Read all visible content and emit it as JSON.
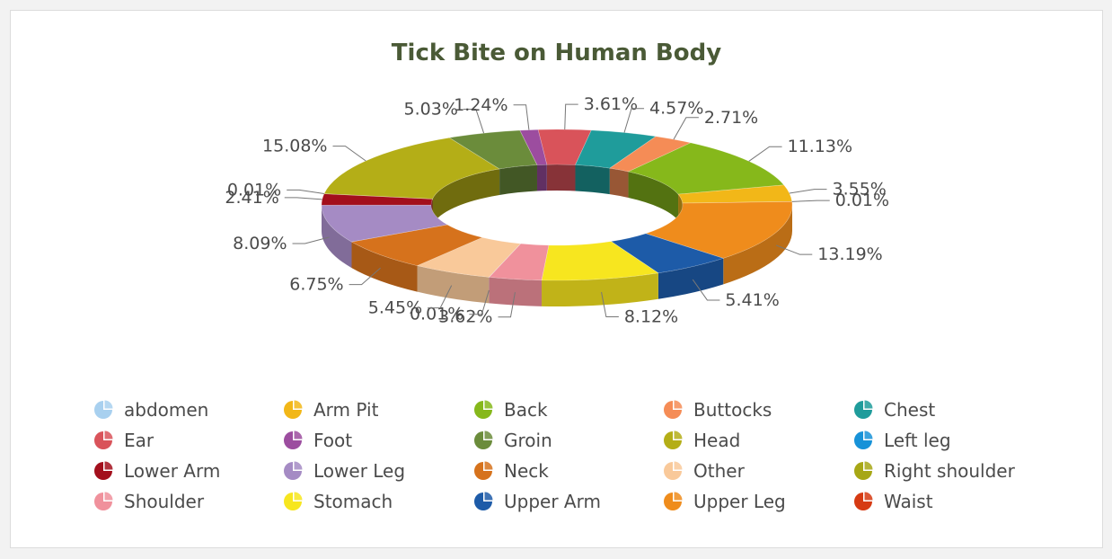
{
  "chart_data": {
    "type": "pie",
    "variant": "3d-donut",
    "title": "Tick Bite on Human Body",
    "series": [
      {
        "name": "abdomen",
        "value": 0.0,
        "color": "#a8d0ef"
      },
      {
        "name": "Ear",
        "value": 3.61,
        "color": "#d9535a"
      },
      {
        "name": "Chest",
        "value": 4.57,
        "color": "#1f9c9b"
      },
      {
        "name": "Buttocks",
        "value": 2.71,
        "color": "#f58c56"
      },
      {
        "name": "Back",
        "value": 11.13,
        "color": "#86b81b"
      },
      {
        "name": "Arm Pit",
        "value": 3.55,
        "color": "#f2b718"
      },
      {
        "name": "Waist",
        "value": 0.01,
        "color": "#d63a12"
      },
      {
        "name": "Upper Leg",
        "value": 13.19,
        "color": "#ef8c1c"
      },
      {
        "name": "Upper Arm",
        "value": 5.41,
        "color": "#1d5ba8"
      },
      {
        "name": "Stomach",
        "value": 8.12,
        "color": "#f7e61f"
      },
      {
        "name": "Shoulder",
        "value": 3.62,
        "color": "#f0919c"
      },
      {
        "name": "Left leg",
        "value": 0.01,
        "color": "#1792d8"
      },
      {
        "name": "Other",
        "value": 5.45,
        "color": "#f9c99a"
      },
      {
        "name": "Neck",
        "value": 6.75,
        "color": "#d6721c"
      },
      {
        "name": "Lower Leg",
        "value": 8.09,
        "color": "#a58bc4"
      },
      {
        "name": "Lower Arm",
        "value": 2.41,
        "color": "#a30f1c"
      },
      {
        "name": "Right shoulder",
        "value": 0.01,
        "color": "#a7a715"
      },
      {
        "name": "Head",
        "value": 15.08,
        "color": "#b4ae17"
      },
      {
        "name": "Groin",
        "value": 5.03,
        "color": "#6b8c3b"
      },
      {
        "name": "Foot",
        "value": 1.24,
        "color": "#9c4d9f"
      }
    ],
    "labels": [
      "",
      "3.61%",
      "4.57%",
      "2.71%",
      "11.13%",
      "3.55%",
      "0.01%",
      "13.19%",
      "5.41%",
      "8.12%",
      "3.62%",
      "0.01%",
      "5.45%",
      "6.75%",
      "8.09%",
      "2.41%",
      "0.01%",
      "15.08%",
      "5.03%",
      "1.24%"
    ],
    "legend_position": "bottom",
    "legend": [
      "abdomen",
      "Arm Pit",
      "Back",
      "Buttocks",
      "Chest",
      "Ear",
      "Foot",
      "Groin",
      "Head",
      "Left leg",
      "Lower Arm",
      "Lower Leg",
      "Neck",
      "Other",
      "Right shoulder",
      "Shoulder",
      "Stomach",
      "Upper Arm",
      "Upper Leg",
      "Waist"
    ]
  }
}
